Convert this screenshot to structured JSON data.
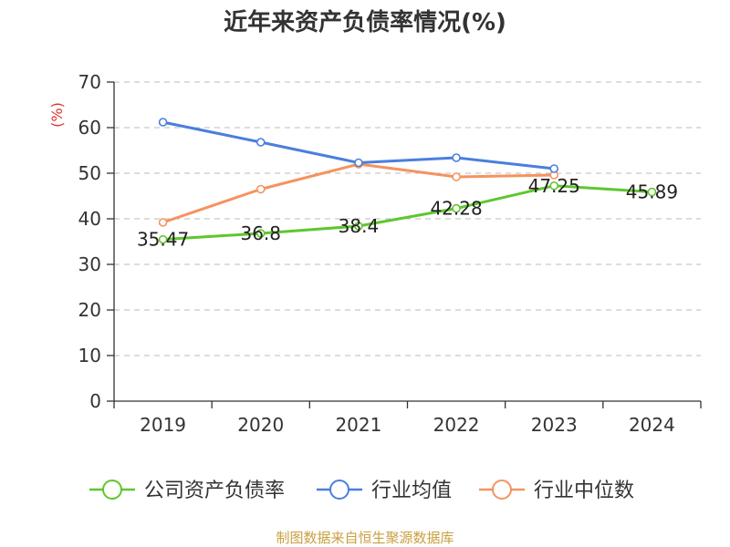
{
  "title": "近年来资产负债率情况(%)",
  "source": "制图数据来自恒生聚源数据库",
  "colors": {
    "company": "#5ec72d",
    "industry_avg": "#4a7fdc",
    "industry_median": "#f5935f",
    "unit_label": "#e03030",
    "axis": "#333333",
    "grid": "#bbbbbb"
  },
  "chart_data": {
    "type": "line",
    "categories": [
      "2019",
      "2020",
      "2021",
      "2022",
      "2023",
      "2024"
    ],
    "ylabel": "(%)",
    "ylim": [
      0,
      70
    ],
    "yticks": [
      "0",
      "10",
      "20",
      "30",
      "40",
      "50",
      "60",
      "70"
    ],
    "grid": "horizontal dashed",
    "legend_position": "bottom",
    "series": [
      {
        "name": "公司资产负债率",
        "values": [
          35.47,
          36.8,
          38.4,
          42.28,
          47.25,
          45.89
        ],
        "labels": [
          "35.47",
          "36.8",
          "38.4",
          "42.28",
          "47.25",
          "45.89"
        ]
      },
      {
        "name": "行业均值",
        "values": [
          61.2,
          56.8,
          52.3,
          53.4,
          51.0,
          null
        ]
      },
      {
        "name": "行业中位数",
        "values": [
          39.2,
          46.5,
          52.0,
          49.2,
          49.6,
          null
        ]
      }
    ]
  }
}
